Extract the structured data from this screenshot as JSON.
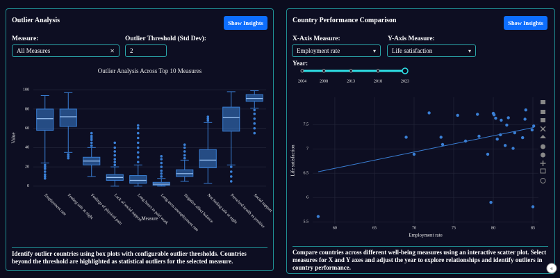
{
  "left_panel": {
    "title": "Outlier Analysis",
    "button": "Show Insights",
    "measure_label": "Measure:",
    "measure_value": "All Measures",
    "threshold_label": "Outlier Threshold (Std Dev):",
    "threshold_value": "2",
    "description": "Identify outlier countries using box plots with configurable outlier thresholds. Countries beyond the threshold are highlighted as statistical outliers for the selected measure."
  },
  "right_panel": {
    "title": "Country Performance Comparison",
    "button": "Show Insights",
    "x_measure_label": "X-Axis Measure:",
    "x_measure_value": "Employment rate",
    "y_measure_label": "Y-Axis Measure:",
    "y_measure_value": "Life satisfaction",
    "year_label": "Year:",
    "year_marks": [
      2004,
      2008,
      2013,
      2018,
      2023
    ],
    "year_value": 2023,
    "description": "Compare countries across different well-being measures using an interactive scatter plot. Select measures for X and Y axes and adjust the year to explore relationships and identify outliers in country performance."
  },
  "chart_data": [
    {
      "type": "box",
      "title": "Outlier Analysis Across Top 10 Measures",
      "x_label": "Measure",
      "y_label": "Value",
      "categories": [
        "Employment rate",
        "Feeling safe at night",
        "Feelings of physical pain",
        "Lack of social support",
        "Long hours in paid work",
        "Long-term unemployment rate",
        "Negative affect balance",
        "Not feeling safe at night",
        "Perceived health as positive",
        "Social support"
      ],
      "whisker_low": [
        24,
        35,
        10,
        0,
        0,
        0,
        5,
        3,
        22,
        81
      ],
      "q1": [
        58,
        62,
        22,
        6,
        3,
        1,
        10,
        19,
        57,
        88
      ],
      "median": [
        70,
        72,
        26,
        9,
        6,
        2,
        13,
        27,
        71,
        91
      ],
      "q3": [
        80,
        80,
        30,
        12,
        11,
        4,
        17,
        38,
        82,
        95
      ],
      "whisker_high": [
        94,
        97,
        40,
        20,
        22,
        8,
        27,
        66,
        98,
        99
      ],
      "outliers": [
        [
          22,
          20,
          18,
          15,
          12,
          10,
          8
        ],
        [
          33,
          31,
          29
        ],
        [
          42,
          45,
          48,
          50,
          52,
          55
        ],
        [
          22,
          25,
          28,
          32,
          36,
          40,
          45
        ],
        [
          25,
          30,
          35,
          40,
          45,
          50,
          55,
          60,
          63
        ],
        [
          10,
          13,
          16,
          20,
          24,
          28,
          31
        ],
        [
          29,
          32,
          36,
          40,
          43
        ],
        [
          68,
          70,
          72
        ],
        [
          20,
          15,
          10,
          5
        ],
        [
          79,
          75,
          70,
          65,
          60,
          55
        ]
      ],
      "color": "#3a7fd5",
      "ylim": [
        -3,
        103
      ],
      "yticks": [
        0,
        20,
        40,
        60,
        80,
        100
      ],
      "grid": true
    },
    {
      "type": "scatter",
      "x_label": "Employment rate",
      "y_label": "Life satisfaction",
      "x": [
        57.9,
        69.0,
        70.0,
        71.9,
        73.4,
        73.6,
        75.5,
        76.5,
        78.0,
        78.2,
        79.3,
        79.7,
        80.0,
        80.1,
        80.3,
        80.5,
        80.9,
        81.0,
        81.5,
        81.7,
        81.9,
        82.5,
        82.7,
        83.7,
        84.0,
        84.1,
        84.9,
        85.1,
        85.0
      ],
      "y": [
        5.61,
        7.24,
        6.89,
        7.74,
        7.24,
        7.09,
        7.69,
        7.16,
        7.71,
        7.26,
        6.89,
        5.9,
        7.73,
        7.7,
        7.63,
        7.2,
        7.29,
        7.59,
        7.07,
        7.49,
        7.64,
        7.01,
        7.33,
        7.23,
        7.61,
        7.8,
        7.39,
        7.47,
        5.81
      ],
      "trendline": {
        "x": [
          57.9,
          85.1
        ],
        "y": [
          6.53,
          7.44
        ]
      },
      "color": "#3a7fd5",
      "xlim": [
        57.2,
        85.7
      ],
      "xticks": [
        60,
        65,
        70,
        75,
        80,
        85
      ],
      "ylim": [
        5.46,
        8.06
      ],
      "yticks": [
        5.5,
        6,
        6.5,
        7,
        7.5
      ],
      "grid": true
    }
  ]
}
